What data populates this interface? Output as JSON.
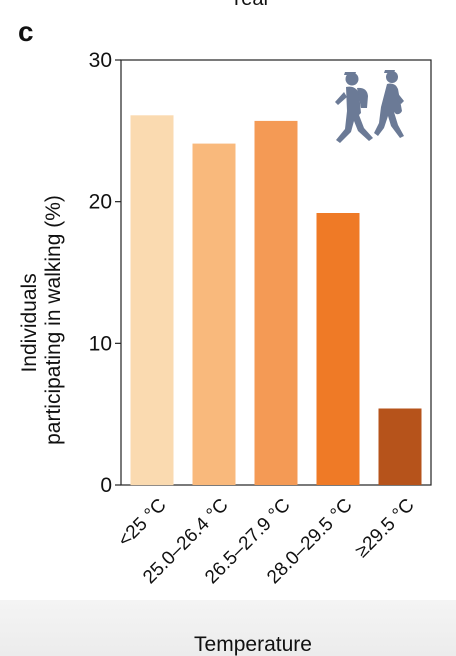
{
  "panel_label": "c",
  "cropped_top_text": "Year",
  "chart_data": {
    "type": "bar",
    "categories": [
      "<25 °C",
      "25.0–26.4 °C",
      "26.5–27.9 °C",
      "28.0–29.5 °C",
      "≥29.5 °C"
    ],
    "values": [
      26.1,
      24.1,
      25.7,
      19.2,
      5.4
    ],
    "colors": [
      "#fadab0",
      "#f9b97c",
      "#f49a55",
      "#ef7a26",
      "#b6531b"
    ],
    "xlabel": "Temperature",
    "ylabel_lines": [
      "Individuals",
      "participating in walking (%)"
    ],
    "ylim": [
      0,
      30
    ],
    "yticks": [
      0,
      10,
      20,
      30
    ],
    "grid": false,
    "icon": "walking-people-icon",
    "icon_color": "#6b7a96"
  }
}
